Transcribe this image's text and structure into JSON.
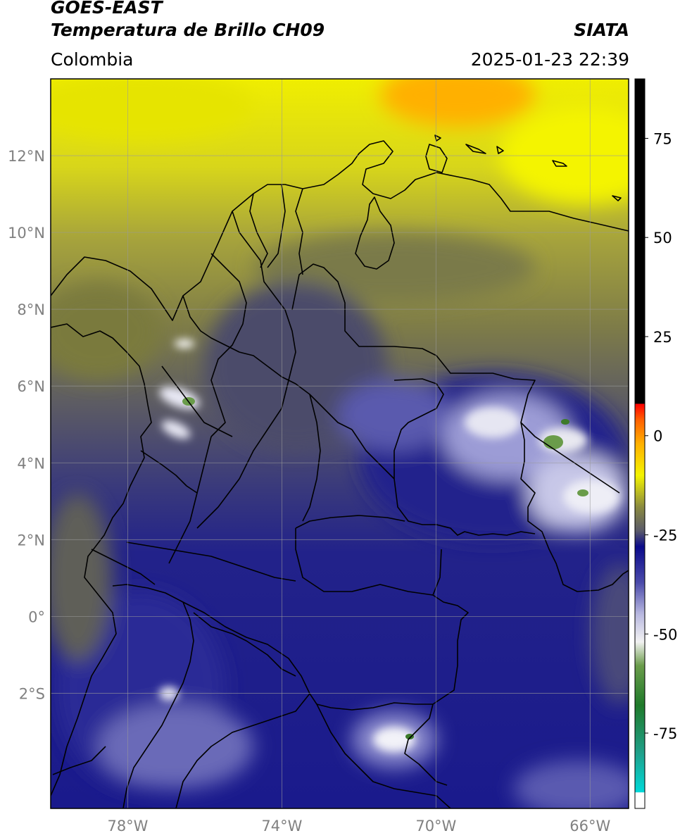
{
  "header": {
    "satellite": "GOES-EAST",
    "product": "Temperatura de Brillo CH09",
    "organization": "SIATA",
    "region": "Colombia",
    "timestamp": "2025-01-23 22:39"
  },
  "map": {
    "lon_range": [
      -80,
      -65
    ],
    "lat_range": [
      -5,
      14
    ],
    "lat_ticks": [
      {
        "value": 12,
        "label": "12°N"
      },
      {
        "value": 10,
        "label": "10°N"
      },
      {
        "value": 8,
        "label": "8°N"
      },
      {
        "value": 6,
        "label": "6°N"
      },
      {
        "value": 4,
        "label": "4°N"
      },
      {
        "value": 2,
        "label": "2°N"
      },
      {
        "value": 0,
        "label": "0°"
      },
      {
        "value": -2,
        "label": "2°S"
      }
    ],
    "lon_ticks": [
      {
        "value": -78,
        "label": "78°W"
      },
      {
        "value": -74,
        "label": "74°W"
      },
      {
        "value": -70,
        "label": "70°W"
      },
      {
        "value": -66,
        "label": "66°W"
      }
    ],
    "colors": {
      "frame": "#000000",
      "grid": "#9a9a9a",
      "tick_label": "#808080",
      "border": "#000000"
    }
  },
  "colorbar": {
    "range": [
      -94,
      90
    ],
    "ticks": [
      {
        "value": 75,
        "label": "75"
      },
      {
        "value": 50,
        "label": "50"
      },
      {
        "value": 25,
        "label": "25"
      },
      {
        "value": 0,
        "label": "0"
      },
      {
        "value": -25,
        "label": "-25"
      },
      {
        "value": -50,
        "label": "-50"
      },
      {
        "value": -75,
        "label": "-75"
      }
    ],
    "stops": [
      {
        "value": -94,
        "color": "#ffffff"
      },
      {
        "value": -90,
        "color": "#ffffff"
      },
      {
        "value": -89.9,
        "color": "#00d8d8"
      },
      {
        "value": -80,
        "color": "#1fa08a"
      },
      {
        "value": -68,
        "color": "#1f7a2a"
      },
      {
        "value": -58,
        "color": "#6a9c4a"
      },
      {
        "value": -52,
        "color": "#f2f2f2"
      },
      {
        "value": -45,
        "color": "#b8b8e0"
      },
      {
        "value": -37,
        "color": "#4a4aaa"
      },
      {
        "value": -28,
        "color": "#0a0a8a"
      },
      {
        "value": -24,
        "color": "#5a5a6a"
      },
      {
        "value": -18,
        "color": "#8a8a40"
      },
      {
        "value": -10,
        "color": "#f4f400"
      },
      {
        "value": -2,
        "color": "#ffb000"
      },
      {
        "value": 4,
        "color": "#ff6000"
      },
      {
        "value": 8,
        "color": "#ff0000"
      },
      {
        "value": 8.1,
        "color": "#000000"
      },
      {
        "value": 90,
        "color": "#000000"
      }
    ]
  }
}
